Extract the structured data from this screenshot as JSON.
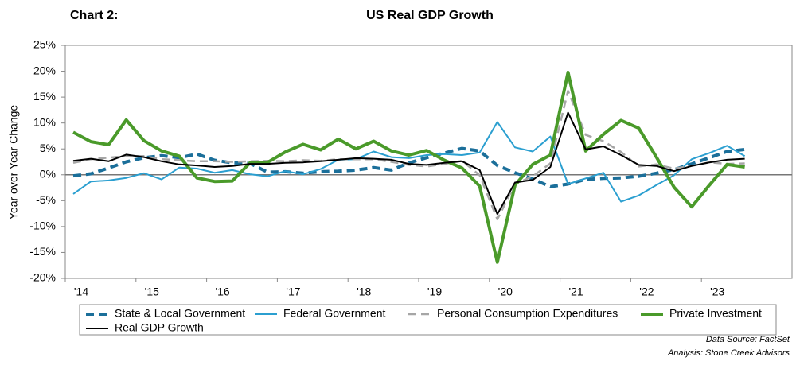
{
  "chart_data": {
    "type": "line",
    "label": "Chart 2:",
    "title": "US Real GDP Growth",
    "y_label": "Year over Year Change",
    "source": "Data Source: FactSet",
    "analysis": "Analysis: Stone Creek Advisors",
    "categories": [
      "'14",
      null,
      null,
      null,
      "'15",
      null,
      null,
      null,
      "'16",
      null,
      null,
      null,
      "'17",
      null,
      null,
      null,
      "'18",
      null,
      null,
      null,
      "'19",
      null,
      null,
      null,
      "'20",
      null,
      null,
      null,
      "'21",
      null,
      null,
      null,
      "'22",
      null,
      null,
      null,
      "'23",
      null,
      null
    ],
    "ylim": [
      -20,
      25
    ],
    "yticks": [
      {
        "value": -20,
        "label": "-20%"
      },
      {
        "value": -15,
        "label": "-15%"
      },
      {
        "value": -10,
        "label": "-10%"
      },
      {
        "value": -5,
        "label": "-5%"
      },
      {
        "value": 0,
        "label": "0%"
      },
      {
        "value": 5,
        "label": "5%"
      },
      {
        "value": 10,
        "label": "10%"
      },
      {
        "value": 15,
        "label": "15%"
      },
      {
        "value": 20,
        "label": "20%"
      },
      {
        "value": 25,
        "label": "25%"
      }
    ],
    "grid": false,
    "series": [
      {
        "name": "State & Local Government",
        "color": "#1b6f9a",
        "dash": true,
        "width": 4,
        "values": [
          -0.2,
          0.2,
          1.3,
          2.5,
          3.3,
          3.7,
          3.3,
          4.0,
          2.8,
          2.3,
          2.2,
          0.5,
          0.6,
          0.3,
          0.6,
          0.7,
          0.9,
          1.4,
          0.9,
          2.3,
          3.3,
          4.2,
          5.1,
          4.6,
          1.8,
          0.4,
          -0.8,
          -2.3,
          -1.8,
          -0.9,
          -0.7,
          -0.6,
          -0.3,
          0.3,
          1.0,
          2.1,
          3.3,
          4.5,
          4.9
        ]
      },
      {
        "name": "Federal Government",
        "color": "#2b9fd0",
        "dash": false,
        "width": 2,
        "values": [
          -3.7,
          -1.3,
          -1.1,
          -0.6,
          0.3,
          -0.9,
          1.4,
          1.2,
          0.4,
          0.9,
          0.1,
          -0.3,
          0.7,
          0.1,
          1.1,
          2.9,
          3.0,
          4.5,
          3.4,
          3.2,
          3.8,
          4.0,
          3.8,
          4.3,
          10.2,
          5.3,
          4.5,
          7.4,
          -1.8,
          -0.7,
          0.4,
          -5.2,
          -4.0,
          -2.0,
          -0.1,
          3.0,
          4.2,
          5.6,
          3.6
        ]
      },
      {
        "name": "Personal Consumption Expenditures",
        "color": "#a6a6a6",
        "dash": true,
        "width": 2.5,
        "values": [
          2.3,
          3.0,
          3.3,
          3.6,
          3.6,
          3.0,
          2.8,
          2.6,
          2.6,
          2.5,
          2.6,
          2.7,
          2.6,
          2.8,
          2.7,
          3.0,
          3.0,
          3.0,
          2.5,
          1.9,
          1.6,
          2.1,
          2.7,
          -0.1,
          -8.6,
          -1.8,
          -0.3,
          2.2,
          16.2,
          7.7,
          6.5,
          4.4,
          1.6,
          2.0,
          1.2,
          1.7,
          2.4,
          2.1,
          2.2
        ]
      },
      {
        "name": "Private Investment",
        "color": "#4a9a2a",
        "dash": false,
        "width": 4,
        "values": [
          8.2,
          6.4,
          5.8,
          10.6,
          6.6,
          4.6,
          3.6,
          -0.6,
          -1.3,
          -1.2,
          2.3,
          2.4,
          4.4,
          5.9,
          4.8,
          6.9,
          5.0,
          6.5,
          4.6,
          3.8,
          4.7,
          2.8,
          1.3,
          -2.2,
          -16.9,
          -2.0,
          2.0,
          3.8,
          19.8,
          4.6,
          7.8,
          10.5,
          9.0,
          3.4,
          -2.4,
          -6.2,
          -2.0,
          2.0,
          1.5
        ]
      },
      {
        "name": "Real GDP Growth",
        "color": "#000000",
        "dash": false,
        "width": 2,
        "values": [
          2.7,
          3.1,
          2.6,
          3.9,
          3.4,
          2.6,
          2.0,
          1.8,
          1.5,
          1.7,
          2.1,
          2.1,
          2.3,
          2.4,
          2.6,
          2.9,
          3.2,
          3.1,
          2.9,
          2.1,
          1.9,
          2.3,
          2.6,
          0.9,
          -7.6,
          -1.5,
          -1.0,
          1.5,
          12.0,
          4.9,
          5.5,
          3.8,
          1.9,
          1.7,
          0.7,
          1.7,
          2.4,
          2.9,
          3.1
        ]
      }
    ]
  }
}
